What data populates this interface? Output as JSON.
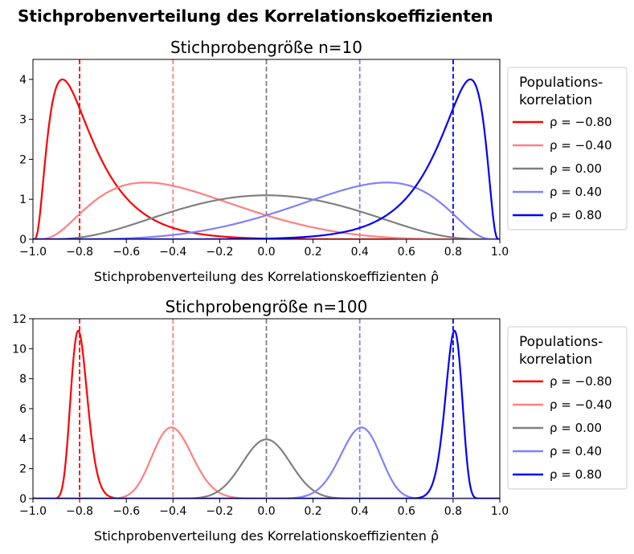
{
  "figure_title": "Stichprobenverteilung des Korrelationskoeffizienten",
  "chart_data": [
    {
      "type": "line",
      "title": "Stichprobengröße n=10",
      "n": 10,
      "xlabel": "Stichprobenverteilung des Korrelationskoeffizienten ρ̂",
      "ylabel": "",
      "xlim": [
        -1.0,
        1.0
      ],
      "ylim": [
        0,
        4.5
      ],
      "xticks": [
        "−1.0",
        "−0.8",
        "−0.6",
        "−0.4",
        "−0.2",
        "0.0",
        "0.2",
        "0.4",
        "0.6",
        "0.8",
        "1.0"
      ],
      "yticks": [
        "0",
        "1",
        "2",
        "3",
        "4"
      ],
      "grid": false,
      "legend": {
        "placement": "outside-right",
        "title_line1": "Populations-",
        "title_line2": "korrelation"
      },
      "series": [
        {
          "name": "ρ = −0.80",
          "rho": -0.8,
          "color": "#ff0000",
          "peak_x": -0.88,
          "peak_y": 4.0
        },
        {
          "name": "ρ = −0.40",
          "rho": -0.4,
          "color": "#ff8080",
          "peak_x": -0.53,
          "peak_y": 1.42
        },
        {
          "name": "ρ = 0.00",
          "rho": 0.0,
          "color": "#808080",
          "peak_x": 0.0,
          "peak_y": 1.1
        },
        {
          "name": "ρ = 0.40",
          "rho": 0.4,
          "color": "#8080ff",
          "peak_x": 0.53,
          "peak_y": 1.42
        },
        {
          "name": "ρ = 0.80",
          "rho": 0.8,
          "color": "#0000ff",
          "peak_x": 0.88,
          "peak_y": 4.0
        }
      ],
      "reference_lines_x": [
        -0.8,
        -0.4,
        0.0,
        0.4,
        0.8
      ]
    },
    {
      "type": "line",
      "title": "Stichprobengröße n=100",
      "n": 100,
      "xlabel": "Stichprobenverteilung des Korrelationskoeffizienten ρ̂",
      "ylabel": "",
      "xlim": [
        -1.0,
        1.0
      ],
      "ylim": [
        0,
        12
      ],
      "xticks": [
        "−1.0",
        "−0.8",
        "−0.6",
        "−0.4",
        "−0.2",
        "0.0",
        "0.2",
        "0.4",
        "0.6",
        "0.8",
        "1.0"
      ],
      "yticks": [
        "0",
        "2",
        "4",
        "6",
        "8",
        "10",
        "12"
      ],
      "grid": false,
      "legend": {
        "placement": "outside-right",
        "title_line1": "Populations-",
        "title_line2": "korrelation"
      },
      "series": [
        {
          "name": "ρ = −0.80",
          "rho": -0.8,
          "color": "#ff0000",
          "peak_x": -0.81,
          "peak_y": 11.2
        },
        {
          "name": "ρ = −0.40",
          "rho": -0.4,
          "color": "#ff8080",
          "peak_x": -0.41,
          "peak_y": 4.75
        },
        {
          "name": "ρ = 0.00",
          "rho": 0.0,
          "color": "#808080",
          "peak_x": 0.0,
          "peak_y": 3.95
        },
        {
          "name": "ρ = 0.40",
          "rho": 0.4,
          "color": "#8080ff",
          "peak_x": 0.41,
          "peak_y": 4.75
        },
        {
          "name": "ρ = 0.80",
          "rho": 0.8,
          "color": "#0000ff",
          "peak_x": 0.81,
          "peak_y": 11.2
        }
      ],
      "reference_lines_x": [
        -0.8,
        -0.4,
        0.0,
        0.4,
        0.8
      ]
    }
  ]
}
